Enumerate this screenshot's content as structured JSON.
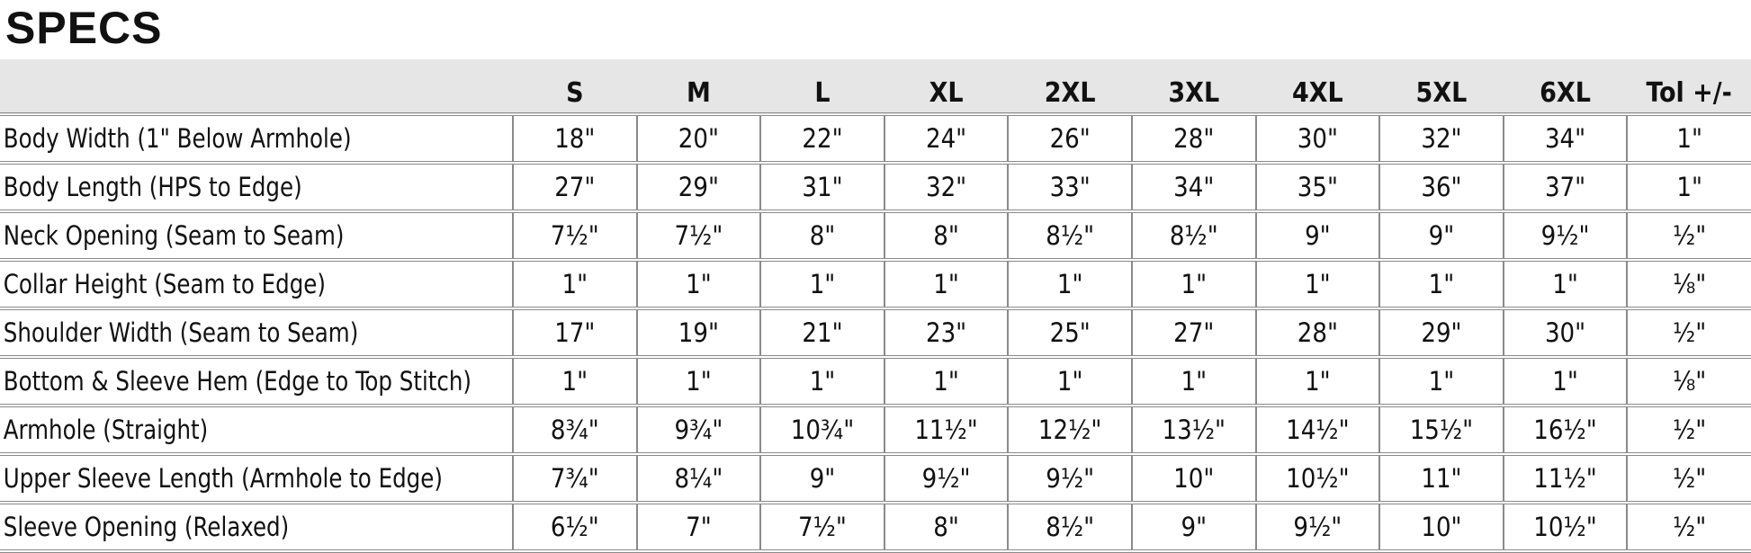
{
  "title": "SPECS",
  "columns": [
    "",
    "S",
    "M",
    "L",
    "XL",
    "2XL",
    "3XL",
    "4XL",
    "5XL",
    "6XL",
    "Tol +/-"
  ],
  "rows": [
    {
      "label": "Body Width (1\" Below Armhole)",
      "values": [
        "18\"",
        "20\"",
        "22\"",
        "24\"",
        "26\"",
        "28\"",
        "30\"",
        "32\"",
        "34\"",
        "1\""
      ]
    },
    {
      "label": "Body Length (HPS to Edge)",
      "values": [
        "27\"",
        "29\"",
        "31\"",
        "32\"",
        "33\"",
        "34\"",
        "35\"",
        "36\"",
        "37\"",
        "1\""
      ]
    },
    {
      "label": "Neck Opening (Seam to Seam)",
      "values": [
        "7½\"",
        "7½\"",
        "8\"",
        "8\"",
        "8½\"",
        "8½\"",
        "9\"",
        "9\"",
        "9½\"",
        "½\""
      ]
    },
    {
      "label": "Collar Height (Seam to Edge)",
      "values": [
        "1\"",
        "1\"",
        "1\"",
        "1\"",
        "1\"",
        "1\"",
        "1\"",
        "1\"",
        "1\"",
        "⅛\""
      ]
    },
    {
      "label": "Shoulder Width (Seam to Seam)",
      "values": [
        "17\"",
        "19\"",
        "21\"",
        "23\"",
        "25\"",
        "27\"",
        "28\"",
        "29\"",
        "30\"",
        "½\""
      ]
    },
    {
      "label": "Bottom & Sleeve Hem (Edge to Top Stitch)",
      "values": [
        "1\"",
        "1\"",
        "1\"",
        "1\"",
        "1\"",
        "1\"",
        "1\"",
        "1\"",
        "1\"",
        "⅛\""
      ]
    },
    {
      "label": "Armhole (Straight)",
      "values": [
        "8¾\"",
        "9¾\"",
        "10¾\"",
        "11½\"",
        "12½\"",
        "13½\"",
        "14½\"",
        "15½\"",
        "16½\"",
        "½\""
      ]
    },
    {
      "label": "Upper Sleeve Length (Armhole to Edge)",
      "values": [
        "7¾\"",
        "8¼\"",
        "9\"",
        "9½\"",
        "9½\"",
        "10\"",
        "10½\"",
        "11\"",
        "11½\"",
        "½\""
      ]
    },
    {
      "label": "Sleeve Opening (Relaxed)",
      "values": [
        "6½\"",
        "7\"",
        "7½\"",
        "8\"",
        "8½\"",
        "9\"",
        "9½\"",
        "10\"",
        "10½\"",
        "½\""
      ]
    }
  ]
}
